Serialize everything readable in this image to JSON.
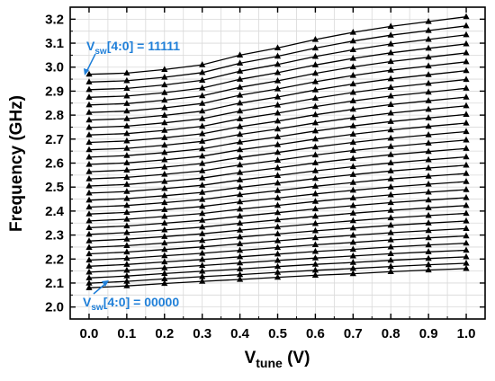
{
  "chart_data": {
    "type": "line",
    "xlabel_main": "V",
    "xlabel_sub": "tune",
    "xlabel_unit": " (V)",
    "ylabel": "Frequency (GHz)",
    "xlim": [
      -0.05,
      1.05
    ],
    "ylim": [
      1.95,
      3.25
    ],
    "grid": true,
    "x": [
      0.0,
      0.1,
      0.2,
      0.3,
      0.4,
      0.5,
      0.6,
      0.7,
      0.8,
      0.9,
      1.0
    ],
    "x_tick_labels": [
      "0.0",
      "0.1",
      "0.2",
      "0.3",
      "0.4",
      "0.5",
      "0.6",
      "0.7",
      "0.8",
      "0.9",
      "1.0"
    ],
    "y_ticks": [
      2.0,
      2.1,
      2.2,
      2.3,
      2.4,
      2.5,
      2.6,
      2.7,
      2.8,
      2.9,
      3.0,
      3.1,
      3.2
    ],
    "y_tick_labels": [
      "2.0",
      "2.1",
      "2.2",
      "2.3",
      "2.4",
      "2.5",
      "2.6",
      "2.7",
      "2.8",
      "2.9",
      "3.0",
      "3.1",
      "3.2"
    ],
    "series_count": 32,
    "band_bottom": [
      2.08,
      2.088,
      2.098,
      2.107,
      2.115,
      2.124,
      2.132,
      2.139,
      2.147,
      2.154,
      2.16
    ],
    "band_top": [
      2.97,
      2.975,
      2.99,
      3.01,
      3.05,
      3.08,
      3.115,
      3.145,
      3.17,
      3.19,
      3.21
    ],
    "marker": "triangle-up",
    "color": "#000000",
    "annotations": {
      "top": {
        "prefix": "V",
        "sub": "sw",
        "rest": "[4:0] = 11111"
      },
      "bottom": {
        "prefix": "V",
        "sub": "sw",
        "rest": "[4:0] = 00000"
      },
      "color": "#1f7fd8"
    }
  }
}
